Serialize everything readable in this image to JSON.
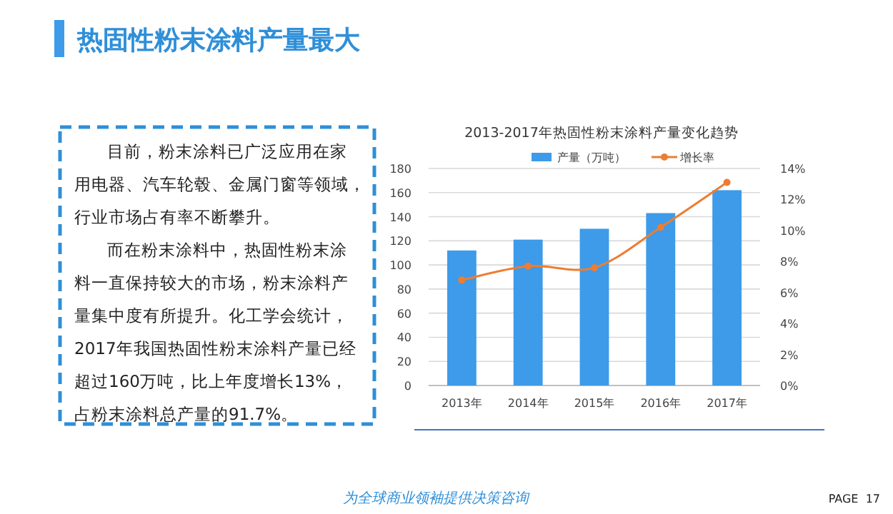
{
  "chart_data": {
    "type": "bar",
    "title": "2013-2017年热固性粉末涂料产量变化趋势",
    "categories": [
      "2013年",
      "2014年",
      "2015年",
      "2016年",
      "2017年"
    ],
    "series": [
      {
        "name": "产量（万吨）",
        "color": "#3d9be9",
        "values": [
          112,
          121,
          130,
          143,
          162
        ]
      },
      {
        "name": "增长率",
        "type": "line",
        "axis": "y2",
        "color": "#ed7d31",
        "marker": "circle",
        "values": [
          6.8,
          7.7,
          7.6,
          10.2,
          13.1
        ]
      }
    ],
    "ylim": [
      0,
      180
    ],
    "yticks": [
      0,
      20,
      40,
      60,
      80,
      100,
      120,
      140,
      160,
      180
    ],
    "y2lim": [
      0,
      14
    ],
    "y2ticks": [
      {
        "value": 0,
        "label": "0%"
      },
      {
        "value": 2,
        "label": "2%"
      },
      {
        "value": 4,
        "label": "4%"
      },
      {
        "value": 6,
        "label": "6%"
      },
      {
        "value": 8,
        "label": "8%"
      },
      {
        "value": 10,
        "label": "10%"
      },
      {
        "value": 12,
        "label": "12%"
      },
      {
        "value": 14,
        "label": "14%"
      }
    ],
    "grid": "y",
    "legend": "top",
    "annotations": [
      "热固性粉末涂料产量最大",
      "目前，粉末涂料已广泛应用在家用电器、汽车轮毂、金属门窗等领域，行业市场占有率不断攀升。",
      "而在粉末涂料中，热固性粉末涂料一直保持较大的市场，粉末涂料产量集中度有所提升。化工学会统计，2017年我国热固性粉末涂料产量已经超过160万吨，比上年度增长13%，占粉末涂料总产量的91.7%。",
      "为全球商业领袖提供决策咨询",
      "PAGE  17"
    ]
  }
}
